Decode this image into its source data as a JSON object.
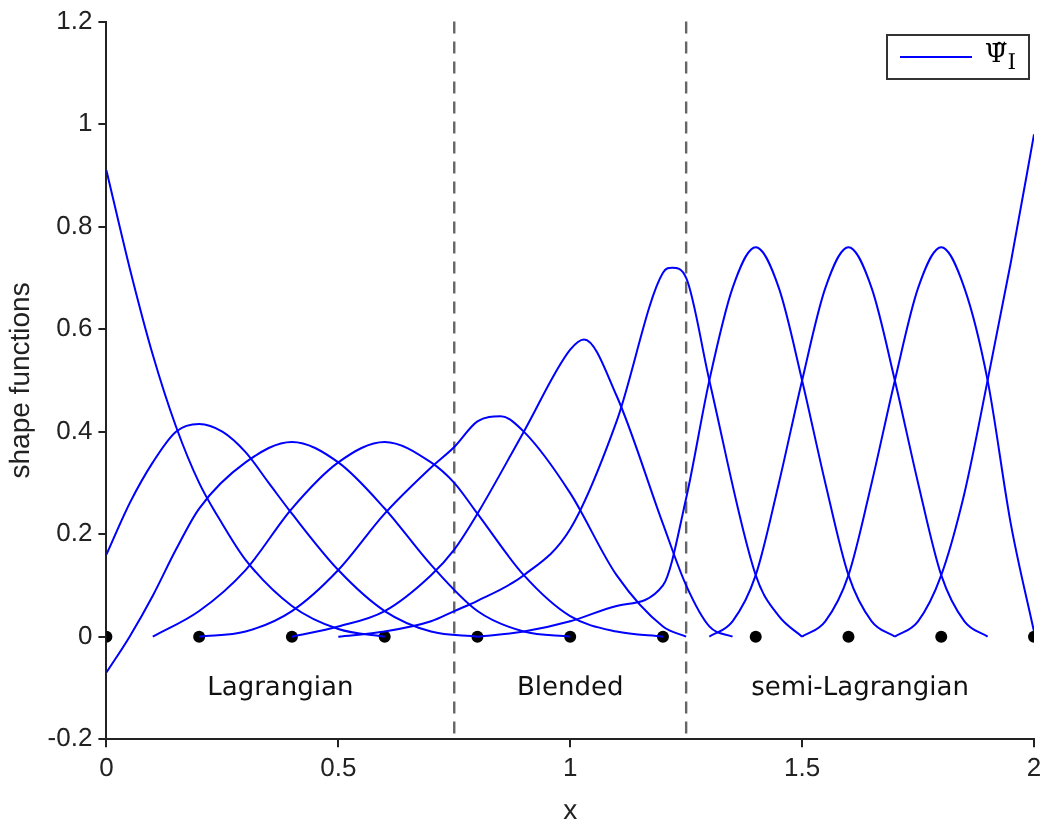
{
  "chart_data": {
    "type": "line",
    "xlabel": "x",
    "ylabel": "shape functions",
    "xlim": [
      0,
      2
    ],
    "ylim": [
      -0.2,
      1.2
    ],
    "xticks": [
      0,
      0.5,
      1,
      1.5,
      2
    ],
    "yticks": [
      -0.2,
      0,
      0.2,
      0.4,
      0.6,
      0.8,
      1,
      1.2
    ],
    "grid": false,
    "legend": "top right",
    "line_style": "solid",
    "series": [
      {
        "name": "Ψ̃$_{I}$",
        "color": "#0000ff",
        "marker": "none",
        "x": [
          0,
          0.05,
          0.1,
          0.15,
          0.2,
          0.25,
          0.3,
          0.4,
          0.5,
          0.6
        ],
        "values": [
          0.91,
          0.72,
          0.55,
          0.41,
          0.3,
          0.22,
          0.15,
          0.06,
          0.015,
          0
        ]
      },
      {
        "color": "#0000ff",
        "marker": "none",
        "x": [
          0,
          0.05,
          0.1,
          0.15,
          0.2,
          0.25,
          0.3,
          0.35,
          0.4,
          0.5,
          0.6,
          0.7,
          0.8
        ],
        "values": [
          0.16,
          0.26,
          0.34,
          0.4,
          0.415,
          0.4,
          0.36,
          0.3,
          0.24,
          0.13,
          0.05,
          0.01,
          0
        ]
      },
      {
        "color": "#0000ff",
        "marker": "none",
        "x": [
          0,
          0.05,
          0.1,
          0.15,
          0.2,
          0.3,
          0.4,
          0.5,
          0.6,
          0.7,
          0.8,
          0.9,
          1
        ],
        "values": [
          -0.07,
          0,
          0.08,
          0.17,
          0.25,
          0.34,
          0.38,
          0.34,
          0.25,
          0.14,
          0.05,
          0.01,
          0
        ]
      },
      {
        "color": "#0000ff",
        "marker": "none",
        "x": [
          0.1,
          0.2,
          0.3,
          0.4,
          0.5,
          0.6,
          0.7,
          0.75,
          0.8,
          0.9,
          1,
          1.1,
          1.2
        ],
        "values": [
          0,
          0.05,
          0.13,
          0.25,
          0.34,
          0.38,
          0.34,
          0.3,
          0.24,
          0.12,
          0.04,
          0.01,
          0
        ]
      },
      {
        "color": "#0000ff",
        "marker": "none",
        "x": [
          0.2,
          0.3,
          0.4,
          0.5,
          0.6,
          0.7,
          0.75,
          0.8,
          0.85,
          0.9,
          1,
          1.1,
          1.2,
          1.25
        ],
        "values": [
          0,
          0.01,
          0.05,
          0.13,
          0.24,
          0.33,
          0.37,
          0.42,
          0.43,
          0.4,
          0.28,
          0.12,
          0.02,
          0
        ]
      },
      {
        "color": "#0000ff",
        "marker": "none",
        "x": [
          0.4,
          0.5,
          0.6,
          0.7,
          0.75,
          0.8,
          0.9,
          1,
          1.03,
          1.1,
          1.2,
          1.25,
          1.3,
          1.35
        ],
        "values": [
          0,
          0.02,
          0.05,
          0.12,
          0.17,
          0.24,
          0.4,
          0.56,
          0.58,
          0.47,
          0.22,
          0.1,
          0.02,
          0
        ]
      },
      {
        "color": "#0000ff",
        "marker": "none",
        "x": [
          0.5,
          0.6,
          0.7,
          0.75,
          0.8,
          0.9,
          1,
          1.1,
          1.2,
          1.22,
          1.25,
          1.3,
          1.4,
          1.45,
          1.5
        ],
        "values": [
          0,
          0.01,
          0.03,
          0.05,
          0.07,
          0.12,
          0.21,
          0.42,
          0.71,
          0.72,
          0.7,
          0.5,
          0.12,
          0.04,
          0
        ]
      },
      {
        "color": "#0000ff",
        "marker": "none",
        "x": [
          0.8,
          0.9,
          1,
          1.1,
          1.2,
          1.25,
          1.3,
          1.35,
          1.4,
          1.45,
          1.5,
          1.55,
          1.6,
          1.65,
          1.7
        ],
        "values": [
          0,
          0.01,
          0.03,
          0.06,
          0.1,
          0.27,
          0.5,
          0.68,
          0.76,
          0.68,
          0.5,
          0.3,
          0.12,
          0.03,
          0
        ]
      },
      {
        "color": "#0000ff",
        "marker": "none",
        "x": [
          1.3,
          1.35,
          1.4,
          1.45,
          1.5,
          1.55,
          1.6,
          1.65,
          1.7,
          1.75,
          1.8,
          1.85,
          1.9
        ],
        "values": [
          0,
          0.03,
          0.12,
          0.3,
          0.5,
          0.68,
          0.76,
          0.68,
          0.5,
          0.3,
          0.12,
          0.03,
          0
        ]
      },
      {
        "color": "#0000ff",
        "marker": "none",
        "x": [
          1.5,
          1.55,
          1.6,
          1.65,
          1.7,
          1.75,
          1.8,
          1.85,
          1.9,
          1.95,
          2
        ],
        "values": [
          0,
          0.03,
          0.12,
          0.3,
          0.5,
          0.68,
          0.76,
          0.68,
          0.5,
          0.22,
          0.01
        ]
      },
      {
        "color": "#0000ff",
        "marker": "none",
        "x": [
          1.7,
          1.75,
          1.8,
          1.85,
          1.9,
          1.95,
          2
        ],
        "values": [
          0,
          0.03,
          0.12,
          0.28,
          0.5,
          0.73,
          0.98
        ]
      },
      {
        "type": "scatter",
        "color": "#000000",
        "marker": "circle",
        "x": [
          0,
          0.2,
          0.4,
          0.6,
          0.8,
          1,
          1.2,
          1.4,
          1.6,
          1.8,
          2
        ],
        "values": [
          0,
          0,
          0,
          0,
          0,
          0,
          0,
          0,
          0,
          0,
          0
        ]
      }
    ],
    "ref_lines": [
      {
        "axis": "x",
        "value": 0.75,
        "color": "#666666",
        "line_style": "dashed"
      },
      {
        "axis": "x",
        "value": 1.25,
        "color": "#666666",
        "line_style": "dashed"
      }
    ],
    "annotations": [
      "Lagrangian",
      "Blended",
      "semi-Lagrangian"
    ]
  }
}
